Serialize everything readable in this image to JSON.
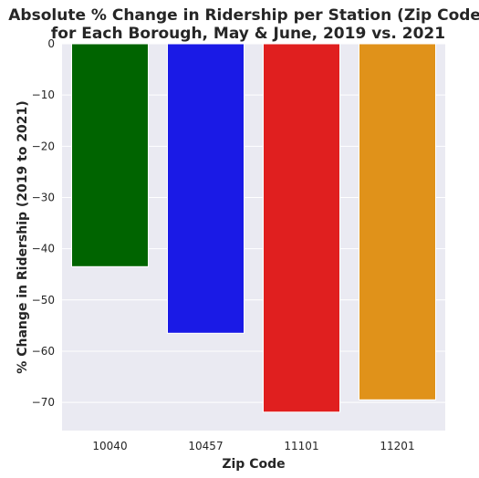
{
  "chart_data": {
    "type": "bar",
    "title_lines": [
      "Absolute % Change in Ridership per Station (Zip Code)",
      "for Each Borough, May & June, 2019 vs. 2021"
    ],
    "xlabel": "Zip Code",
    "ylabel": "% Change in Ridership (2019 to 2021)",
    "categories": [
      "10040",
      "10457",
      "11101",
      "11201"
    ],
    "values": [
      -43.5,
      -56.5,
      -71.9,
      -69.5
    ],
    "colors": [
      "#006400",
      "#1a1ae6",
      "#e01f1f",
      "#e0921a"
    ],
    "ylim": [
      -75.5,
      0
    ],
    "yticks": [
      0,
      -10,
      -20,
      -30,
      -40,
      -50,
      -60,
      -70
    ],
    "ytick_labels": [
      "0",
      "−10",
      "−20",
      "−30",
      "−40",
      "−50",
      "−60",
      "−70"
    ],
    "grid": true,
    "plot_background": "#eaeaf2",
    "grid_color": "#ffffff"
  }
}
